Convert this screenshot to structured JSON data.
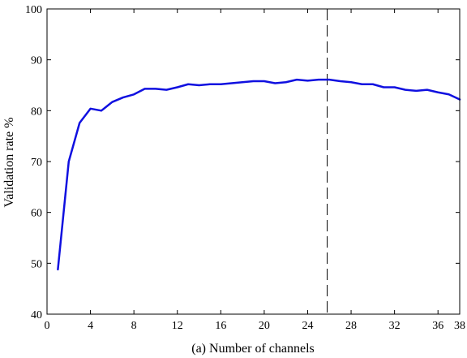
{
  "chart_data": {
    "type": "line",
    "title": "",
    "xlabel": "(a) Number of channels",
    "ylabel": "Validation rate %",
    "xlim": [
      0,
      38
    ],
    "ylim": [
      40,
      100
    ],
    "xticks": [
      0,
      4,
      8,
      12,
      16,
      20,
      24,
      28,
      32,
      36,
      38
    ],
    "yticks": [
      40,
      50,
      60,
      70,
      80,
      90,
      100
    ],
    "grid": false,
    "legend": "none",
    "series": [
      {
        "color": "#1010e0",
        "x": [
          1,
          2,
          3,
          4,
          5,
          6,
          7,
          8,
          9,
          10,
          11,
          12,
          13,
          14,
          15,
          16,
          17,
          18,
          19,
          20,
          21,
          22,
          23,
          24,
          25,
          26,
          27,
          28,
          29,
          30,
          31,
          32,
          33,
          34,
          35,
          36,
          37,
          38
        ],
        "y": [
          48.8,
          70.0,
          77.6,
          80.4,
          80.0,
          81.7,
          82.6,
          83.2,
          84.3,
          84.3,
          84.1,
          84.6,
          85.2,
          85.0,
          85.2,
          85.2,
          85.4,
          85.6,
          85.8,
          85.8,
          85.4,
          85.6,
          86.1,
          85.9,
          86.1,
          86.1,
          85.8,
          85.6,
          85.2,
          85.2,
          84.6,
          84.6,
          84.1,
          83.9,
          84.1,
          83.6,
          83.2,
          82.2
        ]
      }
    ],
    "reference_line": {
      "x": 25.8,
      "style": "dashed",
      "color": "#000000"
    }
  }
}
